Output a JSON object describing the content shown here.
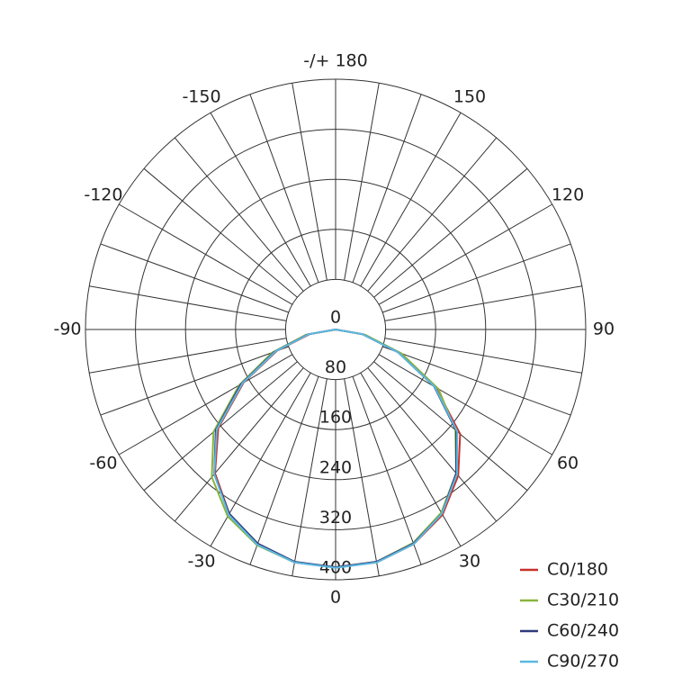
{
  "chart_data": {
    "type": "polar",
    "angles": [
      -90,
      -80,
      -70,
      -60,
      -50,
      -40,
      -30,
      -20,
      -10,
      0,
      10,
      20,
      30,
      40,
      50,
      60,
      70,
      80,
      90
    ],
    "series": [
      {
        "name": "C0/180",
        "color": "#c8302c",
        "values": [
          0,
          42,
          100,
          170,
          245,
          300,
          340,
          365,
          378,
          380,
          378,
          365,
          342,
          305,
          260,
          185,
          108,
          45,
          0
        ]
      },
      {
        "name": "C30/210",
        "color": "#8ab43c",
        "values": [
          0,
          48,
          108,
          178,
          255,
          308,
          345,
          367,
          378,
          380,
          377,
          363,
          338,
          300,
          250,
          190,
          112,
          48,
          0
        ]
      },
      {
        "name": "C60/240",
        "color": "#2e3a7c",
        "values": [
          0,
          45,
          104,
          175,
          250,
          302,
          340,
          364,
          377,
          380,
          377,
          364,
          340,
          300,
          252,
          182,
          106,
          44,
          0
        ]
      },
      {
        "name": "C90/270",
        "color": "#5bb8e0",
        "values": [
          0,
          44,
          102,
          172,
          248,
          302,
          342,
          366,
          378,
          381,
          378,
          365,
          340,
          302,
          254,
          183,
          106,
          44,
          0
        ]
      }
    ],
    "rlim": [
      0,
      400
    ],
    "rticks": [
      0,
      80,
      160,
      240,
      320,
      400
    ],
    "thetaticks": [
      {
        "value": 180,
        "label": "-/+ 180"
      },
      -150,
      150,
      -120,
      120,
      -90,
      90,
      -60,
      60,
      -30,
      30,
      0
    ],
    "grid": true,
    "legend": "lower right"
  }
}
